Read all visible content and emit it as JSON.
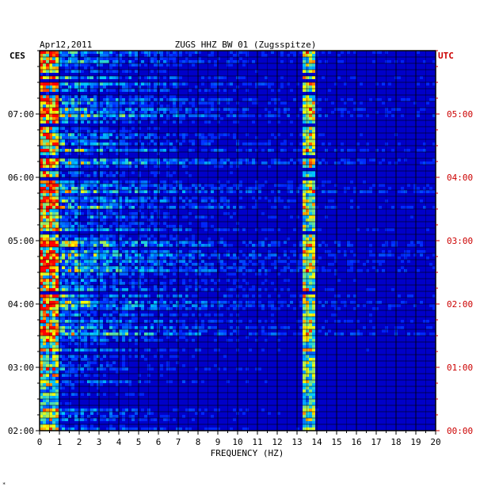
{
  "chart_data": {
    "type": "heatmap",
    "date": "Apr12,2011",
    "title": "ZUGS HHZ BW 01 (Zugsspitze)",
    "left_timezone": "CES",
    "right_timezone": "UTC",
    "xlabel": "FREQUENCY (HZ)",
    "xlim": [
      0,
      20
    ],
    "x_ticks": [
      "0",
      "1",
      "2",
      "3",
      "4",
      "5",
      "6",
      "7",
      "8",
      "9",
      "10",
      "11",
      "12",
      "13",
      "14",
      "15",
      "16",
      "17",
      "18",
      "19",
      "20"
    ],
    "left_time_ticks": [
      "07:00",
      "06:00",
      "05:00",
      "04:00",
      "03:00",
      "02:00"
    ],
    "right_time_ticks": [
      "05:00",
      "04:00",
      "03:00",
      "02:00",
      "01:00",
      "00:00"
    ],
    "time_range_hours_utc": [
      0,
      6
    ],
    "dominant_line_hz": 13.6,
    "colors": {
      "background": "#0000c8",
      "low": "#0000ff",
      "mid": "#00c8ff",
      "high": "#ffff00",
      "peak": "#ff0000",
      "utc_axis": "#cc0000",
      "grid": "#000000"
    },
    "corner_mark": "*"
  }
}
